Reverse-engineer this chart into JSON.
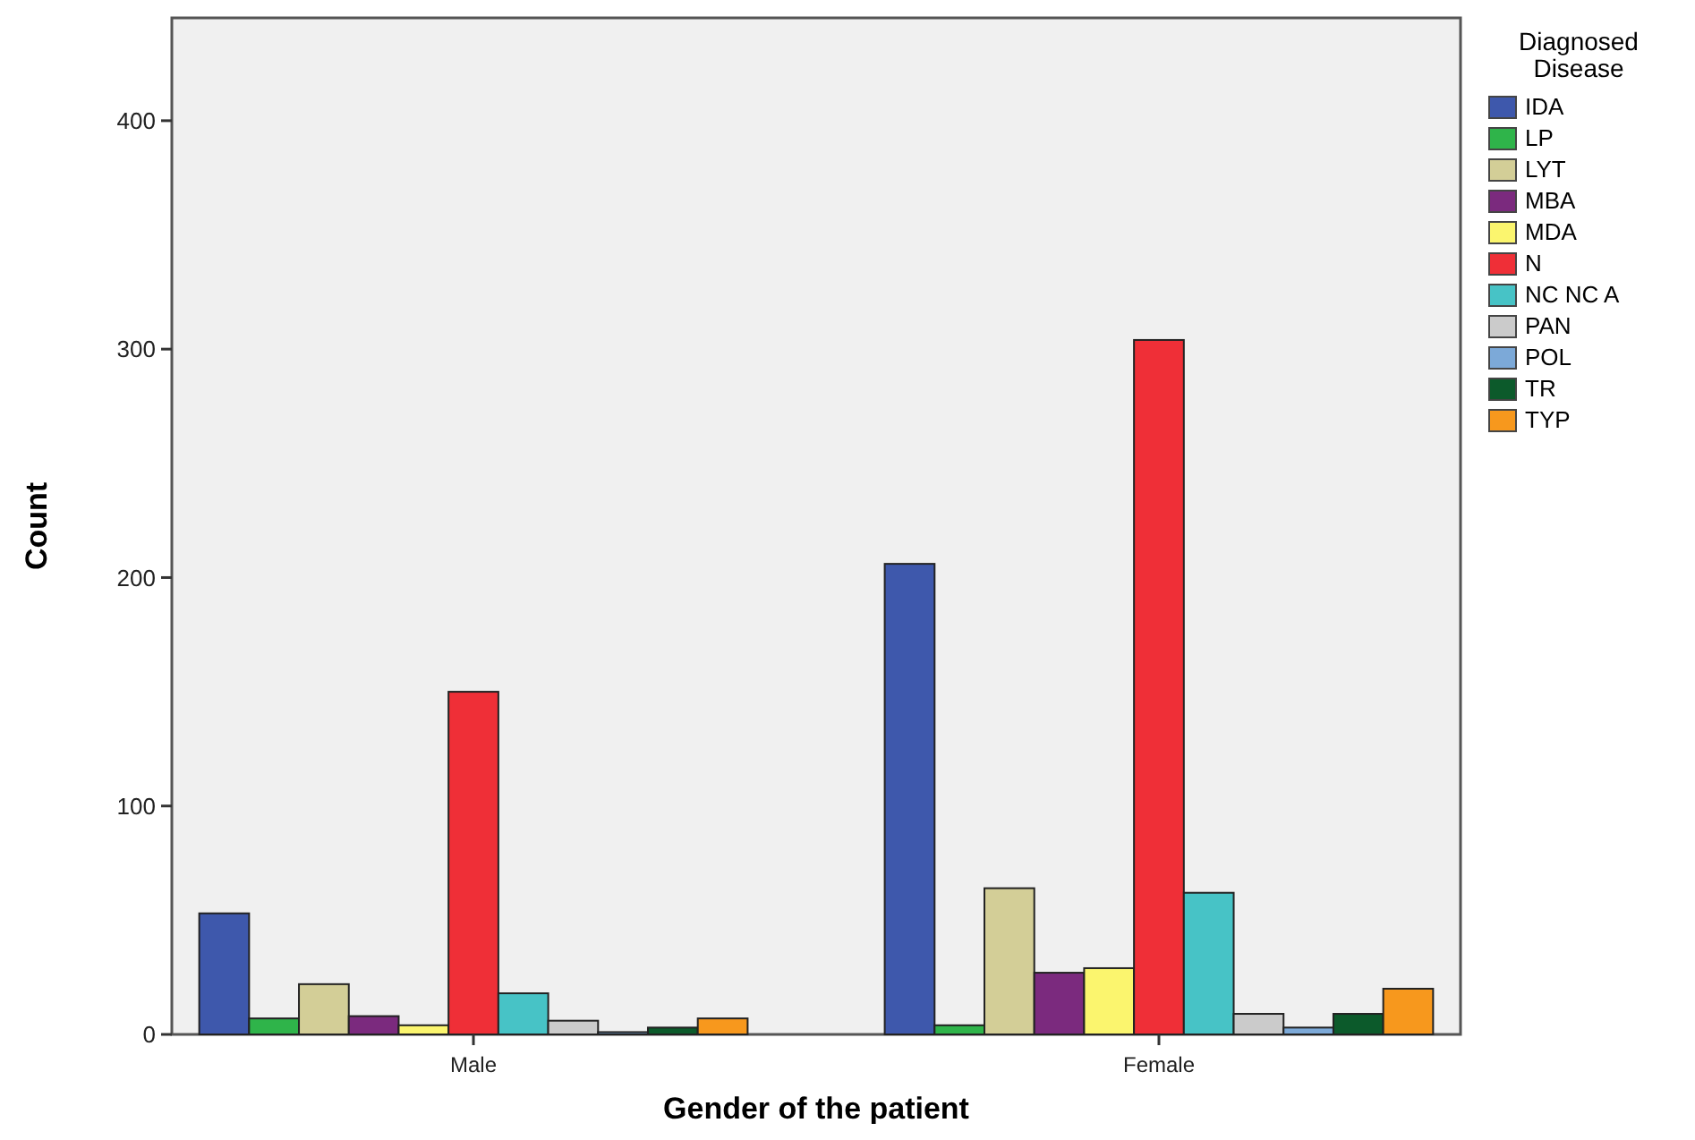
{
  "chart_data": {
    "type": "bar",
    "xlabel": "Gender of the patient",
    "ylabel": "Count",
    "legend_title": "Diagnosed Disease",
    "categories": [
      "Male",
      "Female"
    ],
    "series": [
      {
        "name": "IDA",
        "color": "#3e58ac",
        "values": [
          53,
          206
        ]
      },
      {
        "name": "LP",
        "color": "#2fb44a",
        "values": [
          7,
          4
        ]
      },
      {
        "name": "LYT",
        "color": "#d3ce97",
        "values": [
          22,
          64
        ]
      },
      {
        "name": "MBA",
        "color": "#7b2a7e",
        "values": [
          8,
          27
        ]
      },
      {
        "name": "MDA",
        "color": "#fbf56e",
        "values": [
          4,
          29
        ]
      },
      {
        "name": "N",
        "color": "#ef2f37",
        "values": [
          150,
          304
        ]
      },
      {
        "name": "NC NC A",
        "color": "#47c3c6",
        "values": [
          18,
          62
        ]
      },
      {
        "name": "PAN",
        "color": "#cbcbcb",
        "values": [
          6,
          9
        ]
      },
      {
        "name": "POL",
        "color": "#7ca9d8",
        "values": [
          1,
          3
        ]
      },
      {
        "name": "TR",
        "color": "#0c5a2b",
        "values": [
          3,
          9
        ]
      },
      {
        "name": "TYP",
        "color": "#f7981d",
        "values": [
          7,
          20
        ]
      }
    ],
    "ylim": [
      0,
      445
    ],
    "yticks": [
      0,
      100,
      200,
      300,
      400
    ],
    "grid": false,
    "legend": "right"
  }
}
